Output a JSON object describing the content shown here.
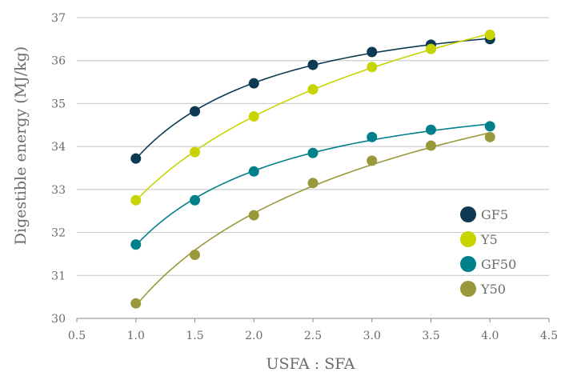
{
  "chart_data": {
    "type": "scatter",
    "title": "",
    "xlabel": "USFA : SFA",
    "ylabel": "Digestible energy (MJ/kg)",
    "xlim": [
      0.5,
      4.5
    ],
    "ylim": [
      30,
      37
    ],
    "x_ticks": [
      "0.5",
      "1.0",
      "1.5",
      "2.0",
      "2.5",
      "3.0",
      "3.5",
      "4.0",
      "4.5"
    ],
    "y_ticks": [
      "30",
      "31",
      "32",
      "33",
      "34",
      "35",
      "36",
      "37"
    ],
    "grid": "horizontal",
    "legend_position": "bottom-right",
    "trendlines": true,
    "x": [
      1.0,
      1.5,
      2.0,
      2.5,
      3.0,
      3.5,
      4.0
    ],
    "series": [
      {
        "name": "GF5",
        "color": "#0d3a52",
        "values": [
          33.72,
          34.82,
          35.47,
          35.9,
          36.2,
          36.37,
          36.5
        ]
      },
      {
        "name": "Y5",
        "color": "#c8d400",
        "values": [
          32.75,
          33.87,
          34.7,
          35.33,
          35.85,
          36.27,
          36.6
        ]
      },
      {
        "name": "GF50",
        "color": "#00808a",
        "values": [
          31.72,
          32.75,
          33.42,
          33.85,
          34.22,
          34.39,
          34.47
        ]
      },
      {
        "name": "Y50",
        "color": "#99983a",
        "values": [
          30.35,
          31.48,
          32.4,
          33.15,
          33.67,
          34.02,
          34.22
        ]
      }
    ]
  }
}
